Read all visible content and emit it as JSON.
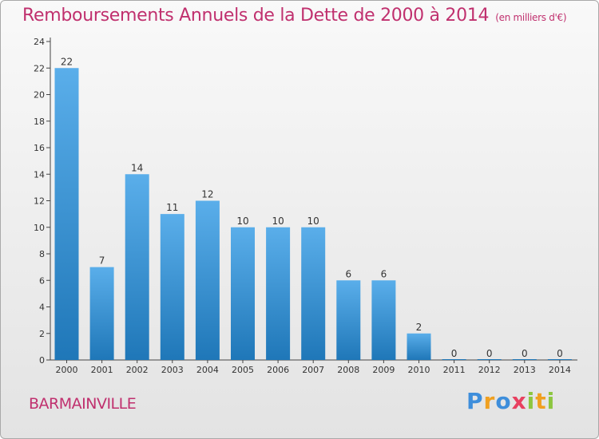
{
  "title": "Remboursements Annuels de la Dette de 2000 à 2014",
  "unit": "(en milliers d'€)",
  "commune": "BARMAINVILLE",
  "logo": {
    "text": "Proxiti",
    "letters": [
      {
        "ch": "P",
        "color": "#3e8edb"
      },
      {
        "ch": "r",
        "color": "#f0a020"
      },
      {
        "ch": "o",
        "color": "#3e8edb"
      },
      {
        "ch": "x",
        "color": "#e84060"
      },
      {
        "ch": "i",
        "color": "#8cc63f"
      },
      {
        "ch": "t",
        "color": "#f0a020"
      },
      {
        "ch": "i",
        "color": "#8cc63f"
      }
    ]
  },
  "colors": {
    "title": "#c0306e",
    "bar_light": "#5aaeea",
    "bar_dark": "#1f77b8",
    "axis": "#444444"
  },
  "chart_data": {
    "type": "bar",
    "title": "Remboursements Annuels de la Dette de 2000 à 2014",
    "categories": [
      "2000",
      "2001",
      "2002",
      "2003",
      "2004",
      "2005",
      "2006",
      "2007",
      "2008",
      "2009",
      "2010",
      "2011",
      "2012",
      "2013",
      "2014"
    ],
    "values": [
      22,
      7,
      14,
      11,
      12,
      10,
      10,
      10,
      6,
      6,
      2,
      0,
      0,
      0,
      0
    ],
    "data_labels": [
      "22",
      "7",
      "14",
      "11",
      "12",
      "10",
      "10",
      "10",
      "6",
      "6",
      "2",
      "0",
      "0",
      "0",
      "0"
    ],
    "ylim": [
      0,
      24
    ],
    "yticks": [
      0,
      2,
      4,
      6,
      8,
      10,
      12,
      14,
      16,
      18,
      20,
      22,
      24
    ],
    "grid": false,
    "legend": "none"
  }
}
